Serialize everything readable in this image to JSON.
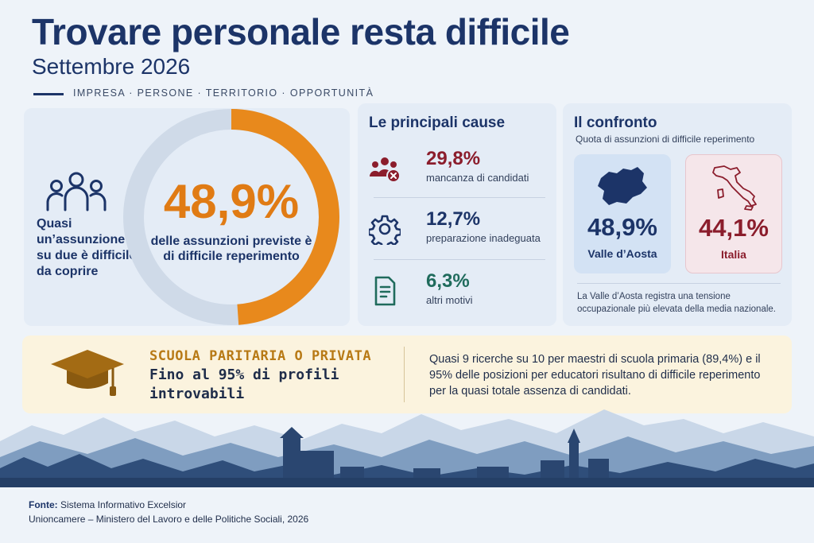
{
  "header": {
    "title": "Trovare personale resta difficile",
    "subtitle": "Settembre 2026",
    "tagline": "IMPRESA · PERSONE · TERRITORIO · OPPORTUNITÀ"
  },
  "main_stat": {
    "caption_left": "Quasi un’assunzione su due è difficile da coprire",
    "value": "48,9%",
    "share": 0.489,
    "caption": "delle assunzioni previste è di difficile reperimento",
    "colors": {
      "filled": "#e8891c",
      "remaining": "#cfdae8"
    }
  },
  "causes": {
    "title": "Le principali cause",
    "items": [
      {
        "value": "29,8%",
        "label": "mancanza di candidati",
        "icon": "people-x-icon",
        "color": "#8b1d2c"
      },
      {
        "value": "12,7%",
        "label": "preparazione inadeguata",
        "icon": "gear-icon",
        "color": "#1c3468"
      },
      {
        "value": "6,3%",
        "label": "altri motivi",
        "icon": "document-icon",
        "color": "#1f6b5c"
      }
    ]
  },
  "compare": {
    "title": "Il confronto",
    "subtitle": "Quota di assunzioni di difficile reperimento",
    "regions": [
      {
        "value": "48,9%",
        "name": "Valle d’Aosta",
        "icon": "valle-aosta-map-icon",
        "color": "#1c3468"
      },
      {
        "value": "44,1%",
        "name": "Italia",
        "icon": "italy-map-icon",
        "color": "#8b1d2c"
      }
    ],
    "note": "La Valle d’Aosta registra una tensione occupazionale più elevata della media nazionale."
  },
  "banner": {
    "heading": "SCUOLA PARITARIA O PRIVATA",
    "big_text": "Fino al 95% di profili introvabili",
    "text": "Quasi 9 ricerche su 10 per maestri di scuola primaria (89,4%) e il 95% delle posizioni per educatori risultano di difficile reperimento per la quasi totale assenza di candidati.",
    "icon": "graduation-cap-icon"
  },
  "footer": {
    "source_label": "Fonte:",
    "source": "Sistema Informativo Excelsior",
    "line2": "Unioncamere – Ministero del Lavoro e delle Politiche Sociali, 2026"
  }
}
